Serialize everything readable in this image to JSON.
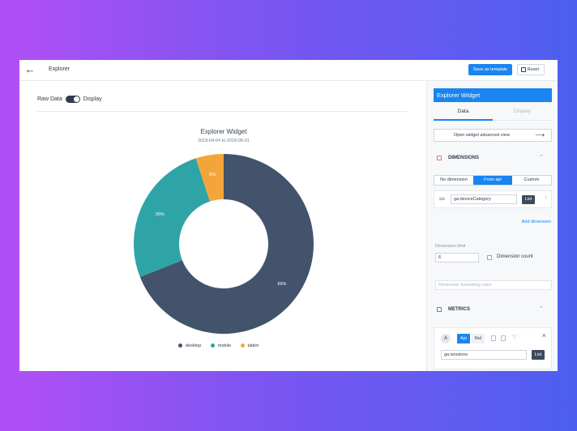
{
  "header": {
    "back_icon": "arrow-left-icon",
    "title": "Explorer",
    "save_template_label": "Save as template",
    "reset_label": "Reset"
  },
  "toolbar": {
    "raw_label": "Raw Data",
    "display_label": "Display"
  },
  "chart_data": {
    "type": "pie",
    "title": "Explorer Widget",
    "subtitle": "2018-04-04 to 2018-05-01",
    "categories": [
      "desktop",
      "mobile",
      "tablet"
    ],
    "values": [
      69,
      26,
      5
    ],
    "labels": [
      "69%",
      "26%",
      "5%"
    ],
    "colors": [
      "#42536b",
      "#2fa4a6",
      "#f3a53b"
    ],
    "legend_position": "bottom"
  },
  "panel": {
    "title": "Explorer Widget",
    "tabs": {
      "data": "Data",
      "display": "Display"
    },
    "advanced_label": "Open widget advanced view",
    "dimensions": {
      "heading": "DIMENSIONS",
      "modes": [
        "No dimension",
        "From api",
        "Custom"
      ],
      "value": "ga:deviceCategory",
      "list_label": "List",
      "add_label": "Add dimension",
      "limit_label": "Dimension limit",
      "limit_value": "6",
      "count_label": "Dimension count",
      "format_placeholder": "Dimension formatting rules"
    },
    "metrics": {
      "heading": "METRICS",
      "avatar": "A",
      "api_label": "Api",
      "rel_label": "Rel",
      "value": "ga:sessions",
      "list_label": "List"
    }
  }
}
